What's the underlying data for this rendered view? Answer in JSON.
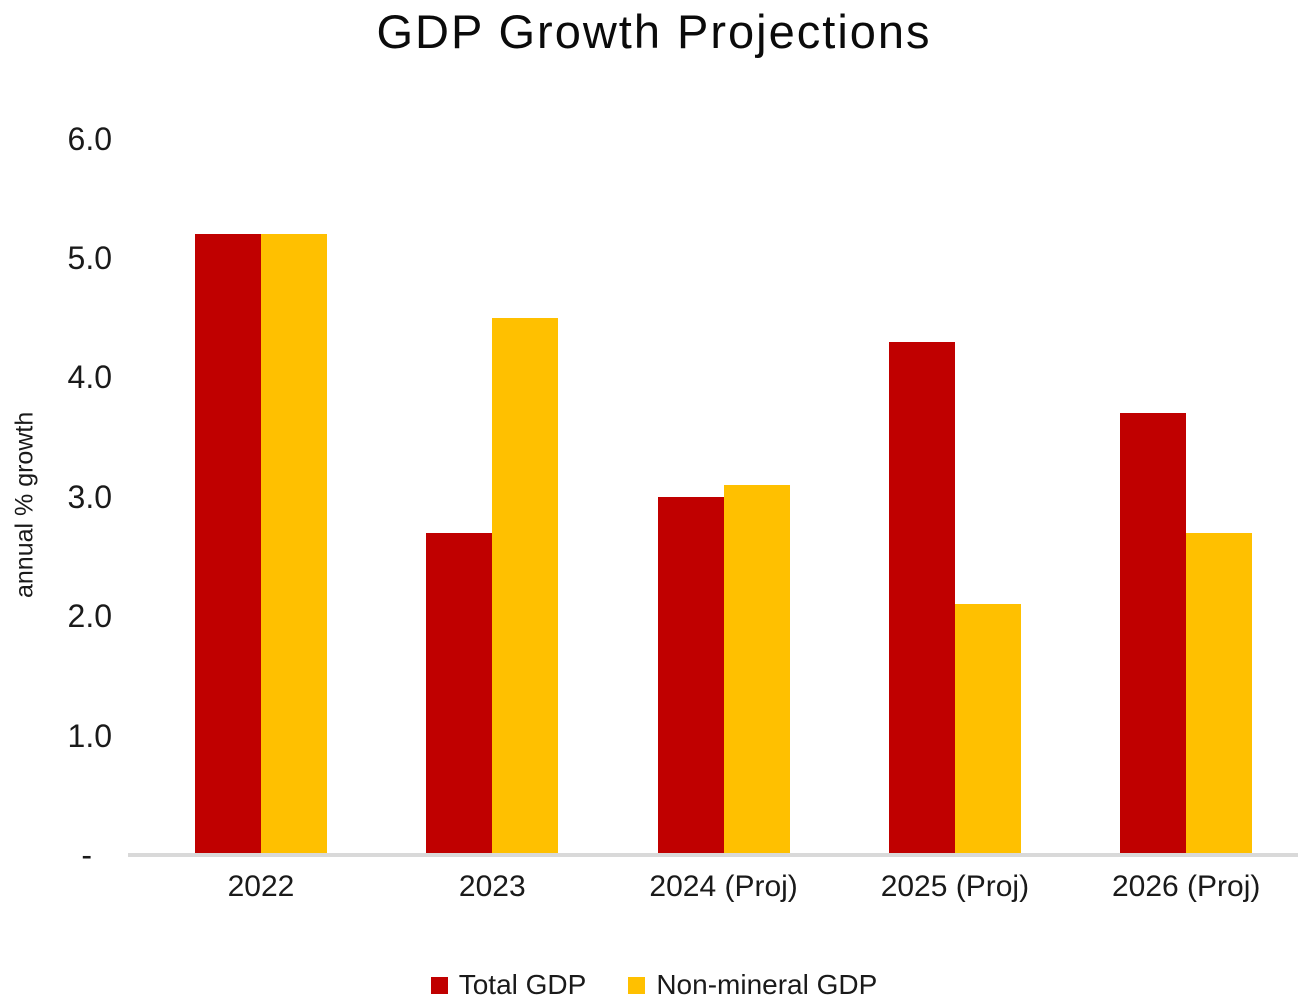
{
  "chart_data": {
    "type": "bar",
    "title": "GDP Growth Projections",
    "xlabel": "",
    "ylabel": "annual % growth",
    "categories": [
      "2022",
      "2023",
      "2024 (Proj)",
      "2025 (Proj)",
      "2026 (Proj)"
    ],
    "series": [
      {
        "name": "Total GDP",
        "color": "#C00000",
        "values": [
          5.2,
          2.7,
          3.0,
          4.3,
          3.7
        ]
      },
      {
        "name": "Non-mineral GDP",
        "color": "#FFC000",
        "values": [
          5.2,
          4.5,
          3.1,
          2.1,
          2.7
        ]
      }
    ],
    "ylim": [
      0,
      6
    ],
    "yticks": {
      "values": [
        6,
        5,
        4,
        3,
        2,
        1,
        0
      ],
      "labels": [
        "6.0",
        "5.0",
        "4.0",
        "3.0",
        "2.0",
        "1.0",
        "-"
      ]
    },
    "grid": false,
    "legend_position": "bottom",
    "axis_line_color": "#D9D9D9"
  }
}
